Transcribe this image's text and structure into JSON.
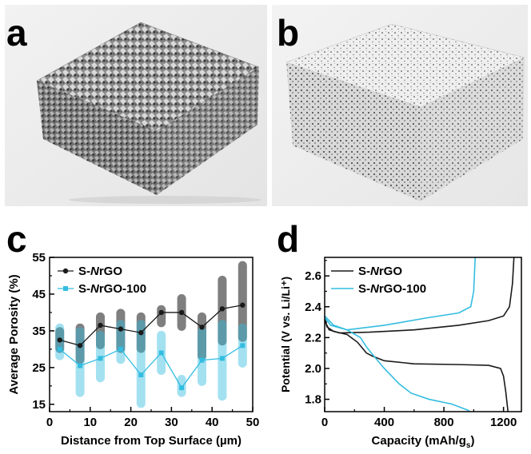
{
  "panels": {
    "a": "a",
    "b": "b",
    "c": "c",
    "d": "d"
  },
  "chart_data": [
    {
      "type": "scatter",
      "panel": "c",
      "xlabel": "Distance from Top Surface (µm)",
      "ylabel": "Average Porosity (%)",
      "xlim": [
        0,
        50
      ],
      "ylim": [
        13,
        55
      ],
      "xticks": [
        0,
        10,
        20,
        30,
        40,
        50
      ],
      "yticks": [
        15,
        25,
        35,
        45,
        55
      ],
      "x": [
        2.5,
        7.5,
        12.5,
        17.5,
        22.5,
        27.5,
        32.5,
        37.5,
        42.5,
        47.5
      ],
      "series": [
        {
          "name": "S-NrGO",
          "color": "#1a1a1a",
          "values": [
            32.5,
            31,
            36.5,
            35.5,
            34.5,
            40,
            40,
            36,
            41,
            42
          ],
          "range_low": [
            29,
            26,
            30,
            29,
            29,
            36,
            35,
            27,
            31,
            32
          ],
          "range_high": [
            36,
            37,
            40,
            41,
            40,
            42,
            45,
            40,
            50,
            54
          ]
        },
        {
          "name": "S-NrGO-100",
          "color": "#33bde0",
          "values": [
            30,
            25.5,
            27.5,
            30,
            23,
            29,
            19.5,
            27,
            27.5,
            31
          ],
          "range_low": [
            27,
            17,
            21,
            26,
            14,
            23,
            17,
            20,
            16,
            25
          ],
          "range_high": [
            37,
            36,
            35,
            38,
            38,
            35,
            23,
            36,
            38,
            37
          ]
        }
      ],
      "legend": "top-left"
    },
    {
      "type": "line",
      "panel": "d",
      "xlabel": "Capacity (mAh/gs)",
      "ylabel": "Potential (V vs. Li/Li⁺)",
      "xlim": [
        0,
        1320
      ],
      "ylim": [
        1.72,
        2.72
      ],
      "xticks": [
        0,
        400,
        800,
        1200
      ],
      "yticks": [
        1.8,
        2.0,
        2.2,
        2.4,
        2.6
      ],
      "series": [
        {
          "name": "S-NrGO (discharge)",
          "color": "#1a1a1a",
          "points": [
            [
              0,
              2.33
            ],
            [
              15,
              2.27
            ],
            [
              60,
              2.24
            ],
            [
              150,
              2.22
            ],
            [
              220,
              2.17
            ],
            [
              280,
              2.1
            ],
            [
              320,
              2.08
            ],
            [
              400,
              2.05
            ],
            [
              600,
              2.03
            ],
            [
              900,
              2.025
            ],
            [
              1100,
              2.02
            ],
            [
              1180,
              2.0
            ],
            [
              1200,
              1.95
            ],
            [
              1215,
              1.85
            ],
            [
              1230,
              1.72
            ]
          ]
        },
        {
          "name": "S-NrGO (charge)",
          "color": "#1a1a1a",
          "points": [
            [
              0,
              2.31
            ],
            [
              30,
              2.25
            ],
            [
              100,
              2.23
            ],
            [
              300,
              2.235
            ],
            [
              600,
              2.25
            ],
            [
              900,
              2.28
            ],
            [
              1100,
              2.31
            ],
            [
              1200,
              2.34
            ],
            [
              1240,
              2.4
            ],
            [
              1260,
              2.55
            ],
            [
              1270,
              2.72
            ]
          ]
        },
        {
          "name": "S-NrGO-100 (discharge)",
          "color": "#33bde0",
          "points": [
            [
              0,
              2.34
            ],
            [
              60,
              2.28
            ],
            [
              150,
              2.25
            ],
            [
              240,
              2.2
            ],
            [
              280,
              2.14
            ],
            [
              330,
              2.08
            ],
            [
              400,
              2.0
            ],
            [
              500,
              1.9
            ],
            [
              580,
              1.84
            ],
            [
              700,
              1.8
            ],
            [
              850,
              1.77
            ],
            [
              960,
              1.73
            ],
            [
              975,
              1.72
            ]
          ]
        },
        {
          "name": "S-NrGO-100 (charge)",
          "color": "#33bde0",
          "points": [
            [
              0,
              2.33
            ],
            [
              40,
              2.28
            ],
            [
              150,
              2.25
            ],
            [
              400,
              2.28
            ],
            [
              700,
              2.33
            ],
            [
              900,
              2.36
            ],
            [
              980,
              2.4
            ],
            [
              1000,
              2.5
            ],
            [
              1010,
              2.72
            ]
          ]
        }
      ],
      "legend_entries": [
        "S-NrGO",
        "S-NrGO-100"
      ],
      "legend": "top-left"
    }
  ]
}
